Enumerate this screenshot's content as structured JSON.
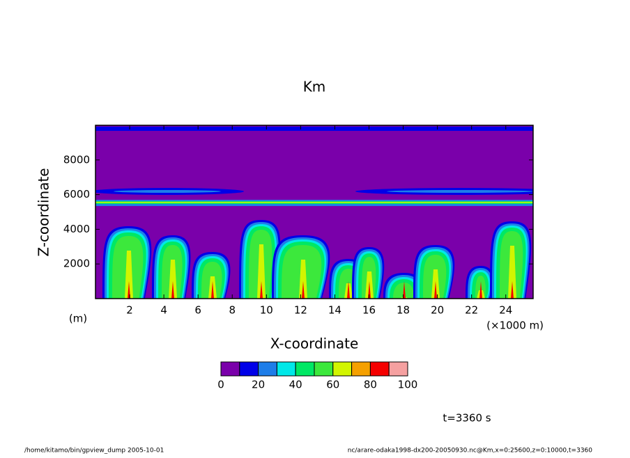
{
  "chart_data": {
    "type": "contour",
    "title": "Km",
    "x_label": "X-coordinate",
    "y_label": "Z-coordinate",
    "x_unit_label": "(×1000 m)",
    "y_unit_label": "(m)",
    "xlim": [
      0,
      25.6
    ],
    "xticks": [
      2,
      4,
      6,
      8,
      10,
      12,
      14,
      16,
      18,
      20,
      22,
      24
    ],
    "ylim": [
      0,
      10000
    ],
    "yticks": [
      2000,
      4000,
      6000,
      8000
    ],
    "levels": [
      0,
      10,
      20,
      30,
      40,
      50,
      60,
      70,
      80,
      90,
      100
    ],
    "level_ticks": [
      0,
      20,
      40,
      60,
      80,
      100
    ],
    "colors": [
      "#7a00aa",
      "#0000e8",
      "#1e7de8",
      "#00e8e8",
      "#00e864",
      "#3ce83c",
      "#d2f500",
      "#f5a000",
      "#f50000",
      "#f5a0a0"
    ],
    "time_label": "t=3360 s",
    "footer_left": "/home/kitamo/bin/gpview_dump  2005-10-01",
    "footer_right": "nc/arare-odaka1998-dx200-20050930.nc@Km,x=0:25600,z=0:10000,t=3360"
  }
}
